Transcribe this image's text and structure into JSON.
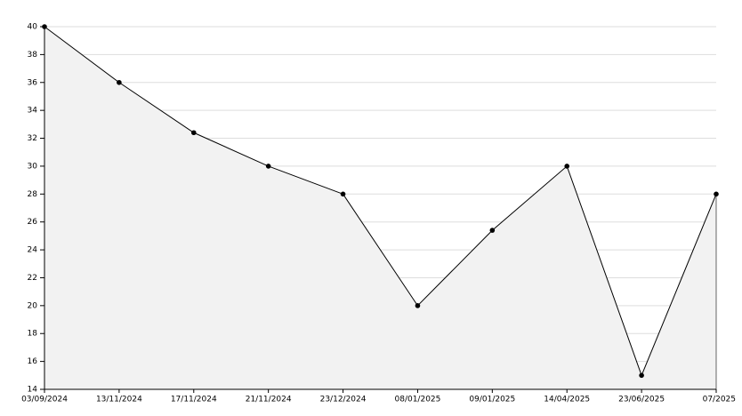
{
  "chart_data": {
    "type": "line",
    "categories": [
      "03/09/2024",
      "13/11/2024",
      "17/11/2024",
      "21/11/2024",
      "23/12/2024",
      "08/01/2025",
      "09/01/2025",
      "14/04/2025",
      "23/06/2025",
      "07/2025"
    ],
    "values": [
      40,
      36,
      32.4,
      30,
      28,
      20,
      25.4,
      30,
      15,
      28
    ],
    "color": "#000000",
    "fill": "#f2f2f2",
    "ylim": [
      14,
      40
    ],
    "yticks": [
      14,
      16,
      18,
      20,
      22,
      24,
      26,
      28,
      30,
      32,
      34,
      36,
      38,
      40
    ],
    "grid": true
  }
}
